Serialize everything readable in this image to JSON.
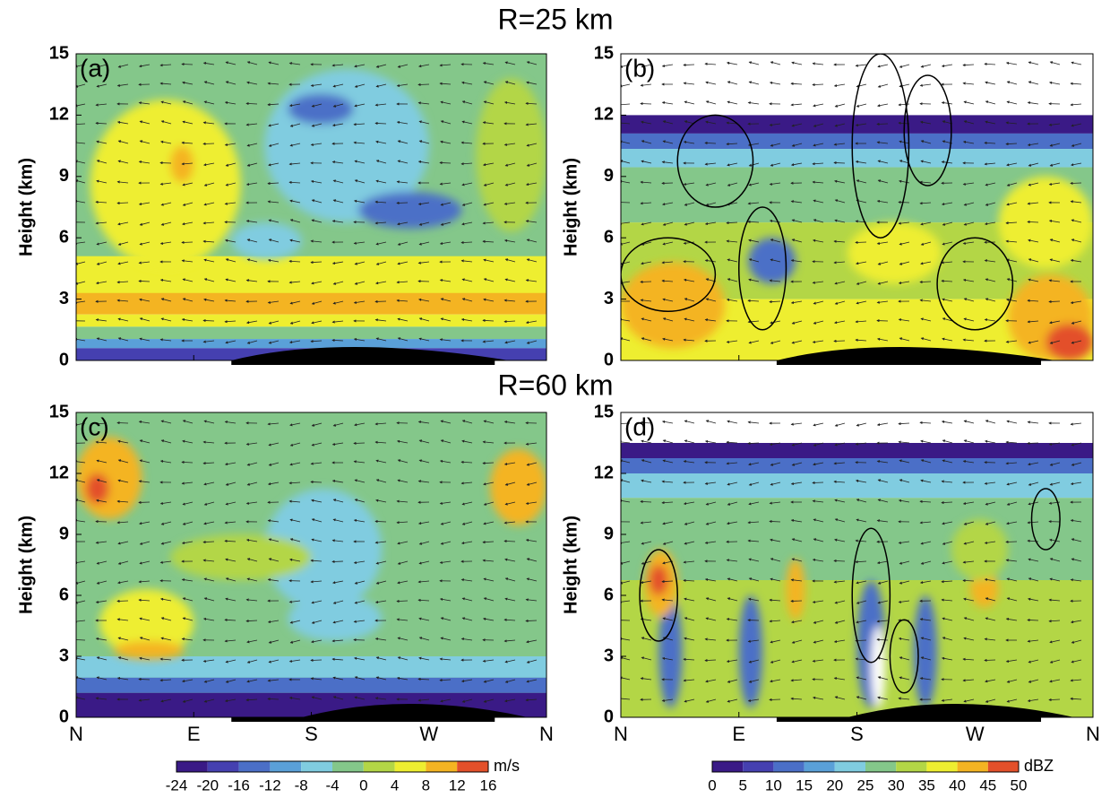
{
  "titles": [
    "R=25 km",
    "R=60 km"
  ],
  "panels": [
    {
      "label": "(a)",
      "y_axis_label": "Height (km)",
      "yticks": [
        0,
        3,
        6,
        9,
        12,
        15
      ],
      "colorbar": 0
    },
    {
      "label": "(b)",
      "y_axis_label": "Height (km)",
      "yticks": [
        0,
        3,
        6,
        9,
        12,
        15
      ],
      "colorbar": 1
    },
    {
      "label": "(c)",
      "y_axis_label": "Height (km)",
      "yticks": [
        0,
        3,
        6,
        9,
        12,
        15
      ],
      "colorbar": 0,
      "xticks": [
        "N",
        "E",
        "S",
        "W",
        "N"
      ]
    },
    {
      "label": "(d)",
      "y_axis_label": "Height (km)",
      "yticks": [
        0,
        3,
        6,
        9,
        12,
        15
      ],
      "colorbar": 1,
      "xticks": [
        "N",
        "E",
        "S",
        "W",
        "N"
      ]
    }
  ],
  "colorbars": [
    {
      "ticks": [
        -24,
        -20,
        -16,
        -12,
        -8,
        -4,
        0,
        4,
        8,
        12,
        16
      ],
      "unit": "m/s",
      "colors": [
        "#3a1a86",
        "#4540b0",
        "#4b6fc7",
        "#5aa0d8",
        "#80cce0",
        "#84c78a",
        "#b3d646",
        "#eeee30",
        "#f4b422",
        "#e3502a"
      ]
    },
    {
      "ticks": [
        0,
        5,
        10,
        15,
        20,
        25,
        30,
        35,
        40,
        45,
        50
      ],
      "unit": "dBZ",
      "colors": [
        "#3a1a86",
        "#4540b0",
        "#4b6fc7",
        "#5aa0d8",
        "#80cce0",
        "#84c78a",
        "#b3d646",
        "#eeee30",
        "#f4b422",
        "#e3502a"
      ]
    }
  ]
}
